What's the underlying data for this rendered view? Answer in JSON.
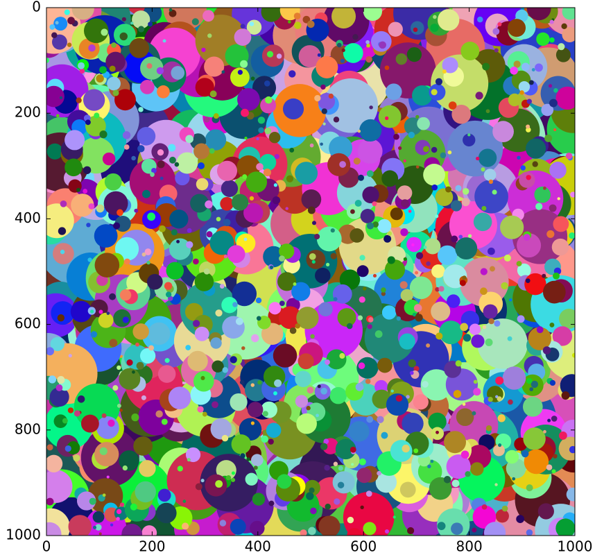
{
  "chart_data": {
    "type": "image",
    "xlim": [
      0,
      1000
    ],
    "ylim": [
      1000,
      0
    ],
    "xticks": [
      0,
      200,
      400,
      600,
      800,
      1000
    ],
    "yticks": [
      0,
      200,
      400,
      600,
      800,
      1000
    ]
  }
}
